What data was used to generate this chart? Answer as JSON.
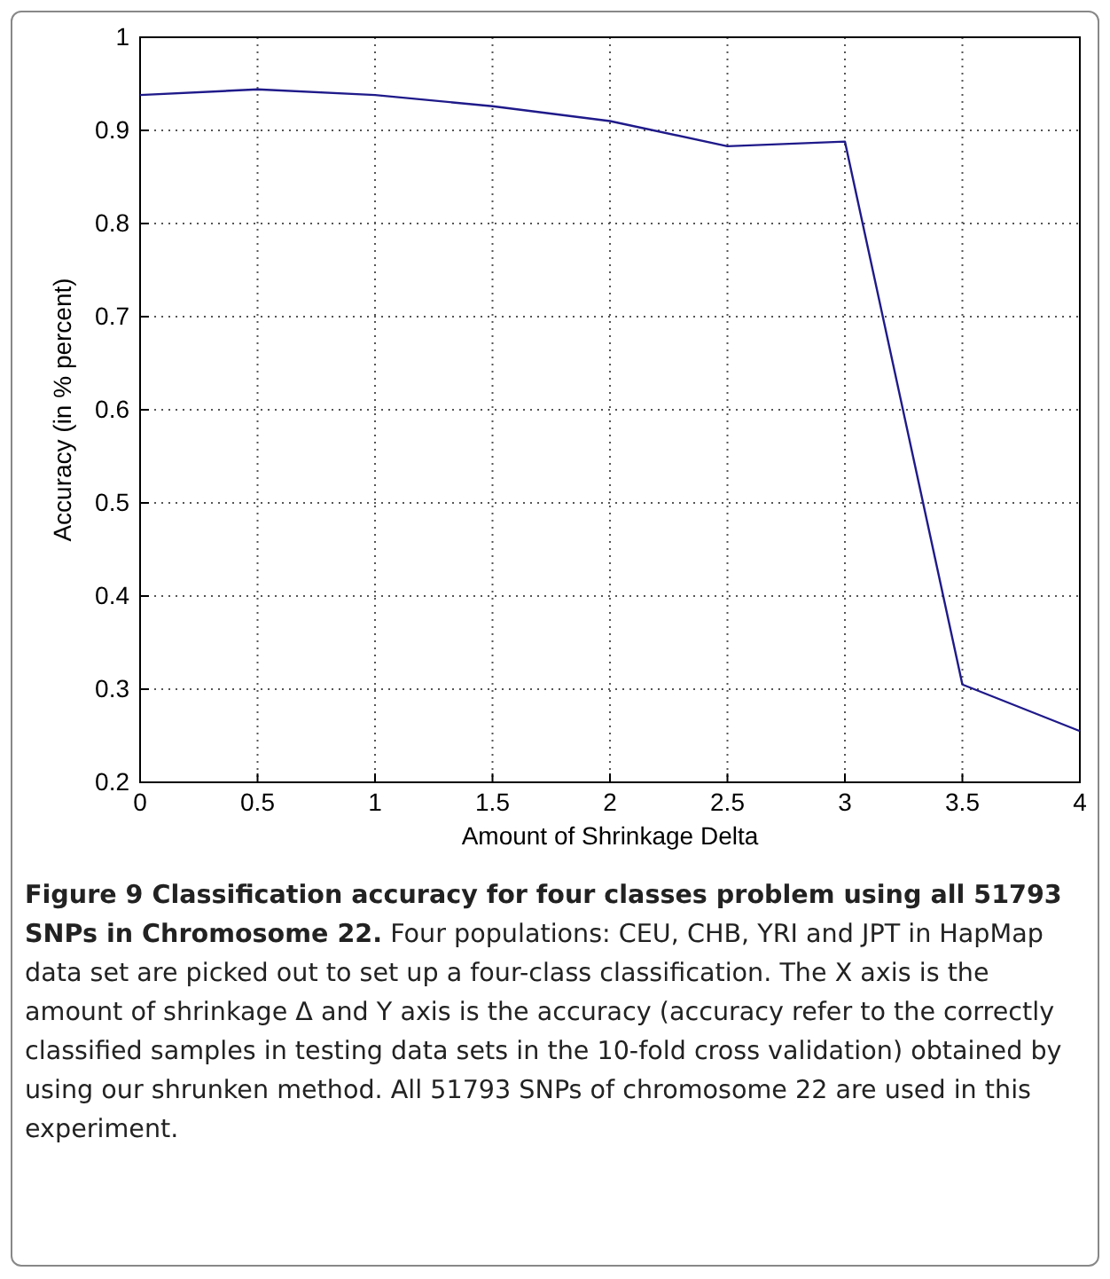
{
  "chart_data": {
    "type": "line",
    "xlabel": "Amount of Shrinkage Delta",
    "ylabel": "Accuracy (in % percent)",
    "x": [
      0,
      0.5,
      1,
      1.5,
      2,
      2.5,
      3,
      3.5,
      4
    ],
    "series": [
      {
        "color": "#1f1a8a",
        "values": [
          0.938,
          0.944,
          0.938,
          0.926,
          0.91,
          0.883,
          0.888,
          0.305,
          0.255
        ]
      }
    ],
    "xlim": [
      0,
      4
    ],
    "xticks": [
      0,
      0.5,
      1,
      1.5,
      2,
      2.5,
      3,
      3.5,
      4
    ],
    "ylim": [
      0.2,
      1
    ],
    "yticks": [
      0.2,
      0.3,
      0.4,
      0.5,
      0.6,
      0.7,
      0.8,
      0.9,
      1
    ],
    "grid": true,
    "marker": "none",
    "line_style": "solid",
    "annotations": [
      "Figure 9 Classification accuracy for four classes problem using all 51793 SNPs in Chromosome 22.",
      "Four populations: CEU, CHB, YRI and JPT in HapMap data set are picked out to set up a four-class classification. The X axis is the amount of shrinkage Δ and Y axis is the accuracy (accuracy refer to the correctly classified samples in testing data sets in the 10-fold cross validation) obtained by using our shrunken method. All 51793 SNPs of chromosome 22 are used in this experiment."
    ]
  }
}
